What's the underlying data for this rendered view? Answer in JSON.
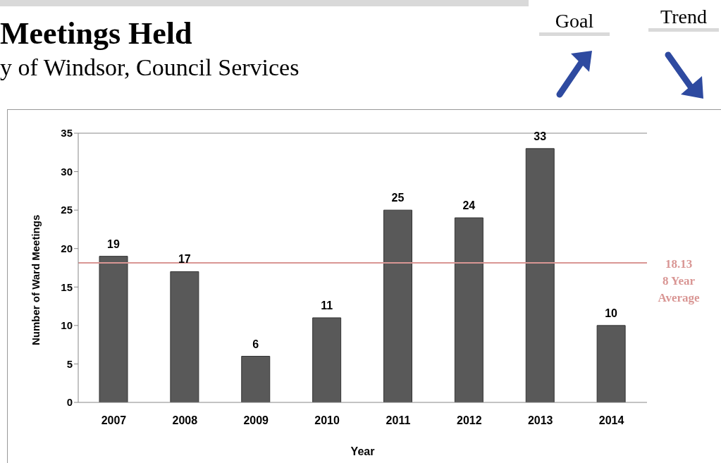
{
  "chart_data": {
    "type": "bar",
    "title": "Meetings Held",
    "subtitle": "y of Windsor, Council Services",
    "xlabel": "Year",
    "ylabel": "Number of Ward Meetings",
    "categories": [
      "2007",
      "2008",
      "2009",
      "2010",
      "2011",
      "2012",
      "2013",
      "2014"
    ],
    "values": [
      19,
      17,
      6,
      11,
      25,
      24,
      33,
      10
    ],
    "color": "#595959",
    "ylim": [
      0,
      35
    ],
    "yticks": [
      0,
      5,
      10,
      15,
      20,
      25,
      30,
      35
    ],
    "grid": false,
    "data_labels": true,
    "ref_lines": [
      {
        "axis": "y",
        "value": 18.13,
        "label": "18.13\n8 Year\nAverage",
        "color": "#d99694"
      }
    ],
    "annotations": [
      "Goal",
      "Trend"
    ]
  }
}
